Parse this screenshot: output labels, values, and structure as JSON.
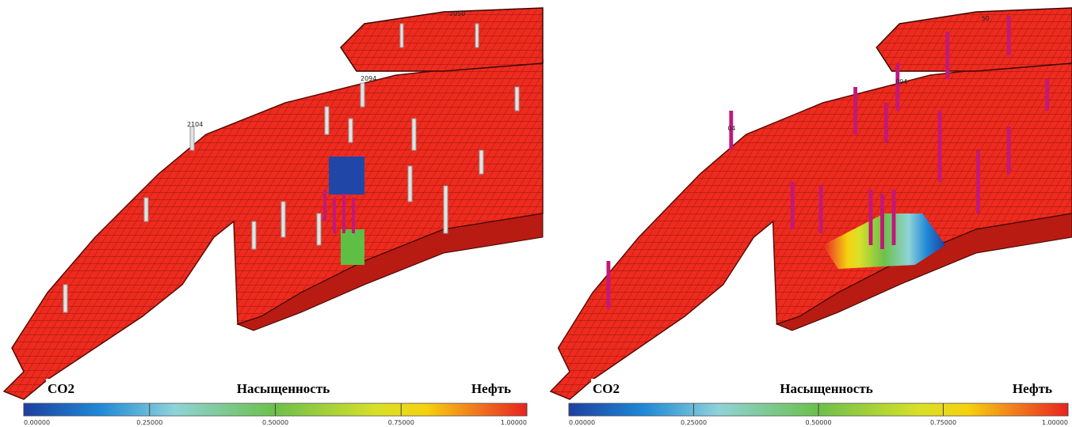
{
  "panels": [
    {
      "well_labels": [
        "2050",
        "2094",
        "2104"
      ],
      "colorbar": {
        "label_left": "CO2",
        "title": "Насыщенность",
        "label_right": "Нефть",
        "lim": [
          0,
          1
        ],
        "ticks": [
          {
            "value": 0,
            "label": "0.00000"
          },
          {
            "value": 0.25,
            "label": "0.25000"
          },
          {
            "value": 0.5,
            "label": "0.50000"
          },
          {
            "value": 0.75,
            "label": "0.75000"
          },
          {
            "value": 1,
            "label": "1.00000"
          }
        ]
      }
    },
    {
      "well_labels": [
        "50",
        "094",
        "04"
      ],
      "colorbar": {
        "label_left": "CO2",
        "title": "Насыщенность",
        "label_right": "Нефть",
        "lim": [
          0,
          1
        ],
        "ticks": [
          {
            "value": 0,
            "label": "0.00000"
          },
          {
            "value": 0.25,
            "label": "0.25000"
          },
          {
            "value": 0.5,
            "label": "0.50000"
          },
          {
            "value": 0.75,
            "label": "0.75000"
          },
          {
            "value": 1,
            "label": "1.00000"
          }
        ]
      }
    }
  ]
}
